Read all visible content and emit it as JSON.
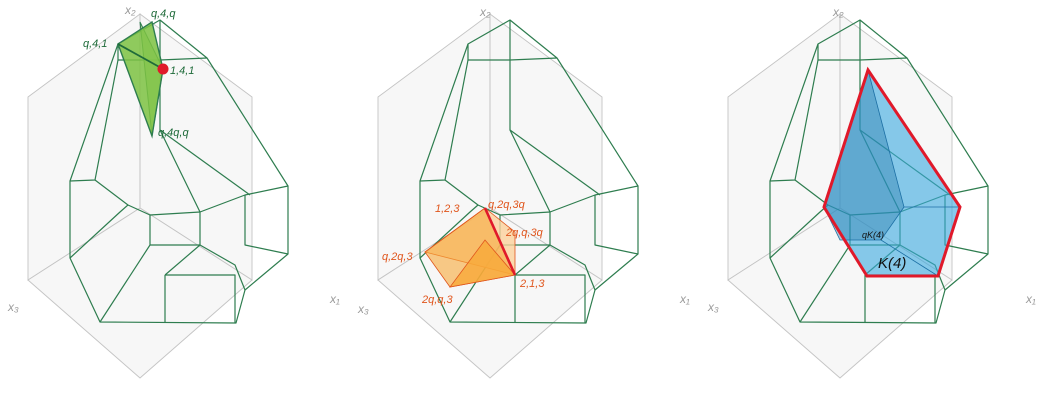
{
  "panels": [
    {
      "id": "left",
      "axes": {
        "x1": "x₁",
        "x2": "x₂",
        "x3": "x₃"
      },
      "labels": [
        "q,4,q",
        "q,4,1",
        "1,4,1",
        "q,4q,q"
      ]
    },
    {
      "id": "middle",
      "axes": {
        "x1": "x₁",
        "x2": "x₂",
        "x3": "x₃"
      },
      "labels": [
        "1,2,3",
        "q,2q,3q",
        "2q,q,3q",
        "q,2q,3",
        "2,1,3",
        "2q,q,3"
      ]
    },
    {
      "id": "right",
      "axes": {
        "x1": "x₁",
        "x2": "x₂",
        "x3": "x₃"
      },
      "labels": [
        "qK(4)",
        "K(4)"
      ]
    }
  ],
  "colors": {
    "polytope_edge": "#2e7d4f",
    "green_fill": "#7cc242",
    "green_vertex": "#e0192a",
    "orange_fill": "#f7a938",
    "orange_label": "#e0561d",
    "red_highlight": "#e0192a",
    "blue_fill": "#39a9e0"
  }
}
